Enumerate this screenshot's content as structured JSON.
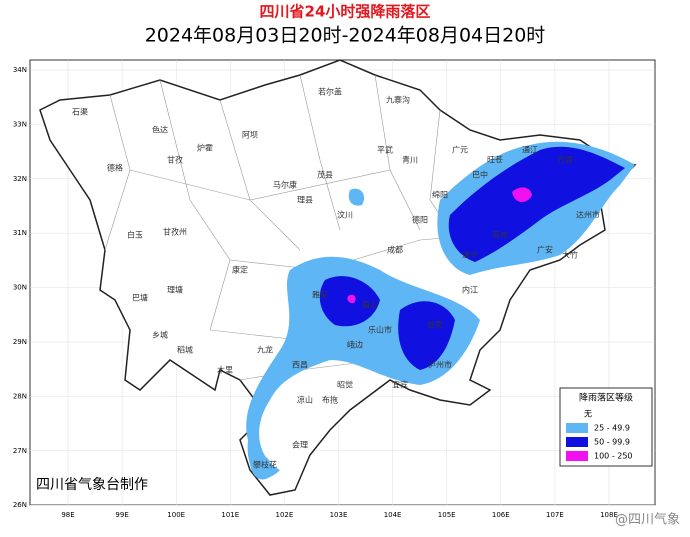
{
  "header": {
    "title": "四川省24小时强降雨落区",
    "subtitle": "2024年08月03日20时-2024年08月04日20时"
  },
  "map": {
    "lat_labels": [
      "34N",
      "33N",
      "32N",
      "31N",
      "30N",
      "29N",
      "28N",
      "27N",
      "26N"
    ],
    "lon_labels": [
      "98E",
      "99E",
      "100E",
      "101E",
      "102E",
      "103E",
      "104E",
      "105E",
      "106E",
      "107E",
      "108E"
    ],
    "places": [
      "若尔盖",
      "石渠",
      "色达",
      "德格",
      "甘孜",
      "炉霍",
      "白玉",
      "甘孜州",
      "理塘",
      "巴塘",
      "乡城",
      "稻城",
      "木里",
      "九龙",
      "康定",
      "阿坝",
      "马尔康",
      "理县",
      "汶川",
      "茂县",
      "九寨沟",
      "平武",
      "青川",
      "广元",
      "旺苍",
      "巴中",
      "通江",
      "万源",
      "达州市",
      "南充",
      "绵阳",
      "德阳",
      "成都",
      "雅安",
      "乐山市",
      "眉山",
      "自贡",
      "宜宾",
      "泸州市",
      "西昌",
      "凉山",
      "攀枝花",
      "会理",
      "布拖",
      "昭觉",
      "峨边",
      "内江",
      "遂宁",
      "广安",
      "大竹"
    ]
  },
  "legend": {
    "title": "降雨落区等级",
    "items": [
      "无",
      "25 - 49.9",
      "50 - 99.9",
      "100 - 250"
    ]
  },
  "credit": "四川省气象台制作",
  "watermark": "@四川气象"
}
